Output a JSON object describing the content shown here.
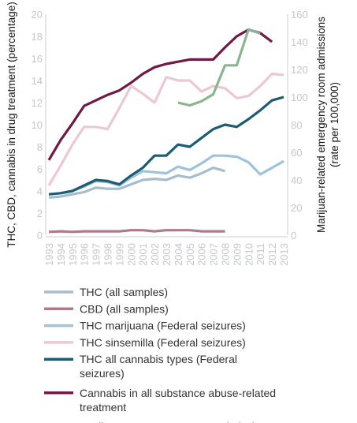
{
  "chart_data": {
    "type": "line",
    "x": [
      1993,
      1994,
      1995,
      1996,
      1997,
      1998,
      1999,
      2000,
      2001,
      2002,
      2003,
      2004,
      2005,
      2006,
      2007,
      2008,
      2009,
      2010,
      2011,
      2012,
      2013
    ],
    "y_left": {
      "label": "THC, CBD, cannabis in drug treatment (percentage)",
      "ylim": [
        0,
        20
      ],
      "ticks": [
        0,
        2,
        4,
        6,
        8,
        10,
        12,
        14,
        16,
        18,
        20
      ]
    },
    "y_right": {
      "label": "Marijuan-related emergency room admissions (rate per 100,000)",
      "ylim": [
        0,
        160
      ],
      "ticks": [
        0,
        20,
        40,
        60,
        80,
        100,
        120,
        140,
        160
      ]
    },
    "grid": false,
    "legend_position": "bottom",
    "series": [
      {
        "name": "THC (all samples)",
        "axis": "left",
        "color": "#a9bccb",
        "values": [
          3.4,
          3.5,
          3.7,
          3.9,
          4.3,
          4.2,
          4.2,
          4.6,
          5.0,
          5.1,
          5.0,
          5.4,
          5.2,
          5.6,
          6.1,
          5.8,
          null,
          null,
          null,
          null,
          null
        ]
      },
      {
        "name": "CBD (all samples)",
        "axis": "left",
        "color": "#b07a8c",
        "values": [
          0.3,
          0.35,
          0.3,
          0.35,
          0.35,
          0.35,
          0.35,
          0.45,
          0.45,
          0.35,
          0.45,
          0.45,
          0.45,
          0.35,
          0.35,
          0.35,
          null,
          null,
          null,
          null,
          null
        ]
      },
      {
        "name": "THC marijuana (Federal seizures)",
        "axis": "left",
        "color": "#9ec3db",
        "values": [
          3.7,
          3.8,
          4.0,
          4.4,
          4.9,
          4.8,
          4.5,
          5.2,
          5.8,
          5.7,
          5.6,
          6.2,
          5.9,
          6.5,
          7.2,
          7.2,
          7.1,
          6.6,
          5.5,
          6.1,
          6.7
        ]
      },
      {
        "name": "THC sinsemilla (Federal seizures)",
        "axis": "left",
        "color": "#ebc8d2",
        "values": [
          4.5,
          6.3,
          8.2,
          9.8,
          9.8,
          9.6,
          11.5,
          13.5,
          12.8,
          12.0,
          14.3,
          14.0,
          14.0,
          13.0,
          13.5,
          13.3,
          12.4,
          12.6,
          13.5,
          14.6,
          14.5
        ]
      },
      {
        "name": "THC all cannabis types (Federal seizures)",
        "axis": "left",
        "color": "#1d5c73",
        "values": [
          3.7,
          3.8,
          4.0,
          4.5,
          5.0,
          4.9,
          4.6,
          5.4,
          6.1,
          7.2,
          7.2,
          8.2,
          8.0,
          8.8,
          9.6,
          10.0,
          9.8,
          10.5,
          11.3,
          12.2,
          12.5
        ]
      },
      {
        "name": "Cannabis in all substance abuse-related treatment",
        "axis": "left",
        "color": "#6e1a45",
        "values": [
          6.8,
          8.6,
          10.1,
          11.7,
          12.2,
          12.7,
          13.1,
          13.8,
          14.6,
          15.2,
          15.5,
          15.7,
          15.9,
          15.9,
          15.9,
          17.0,
          18.0,
          18.6,
          18.3,
          17.5,
          null
        ]
      },
      {
        "name": "Marijuana emergency room admissions",
        "axis": "right",
        "color": "#8bb58f",
        "values": [
          null,
          null,
          null,
          null,
          null,
          null,
          null,
          null,
          null,
          null,
          null,
          96,
          94,
          97,
          102,
          123,
          123,
          149,
          146,
          null,
          null
        ]
      }
    ]
  }
}
